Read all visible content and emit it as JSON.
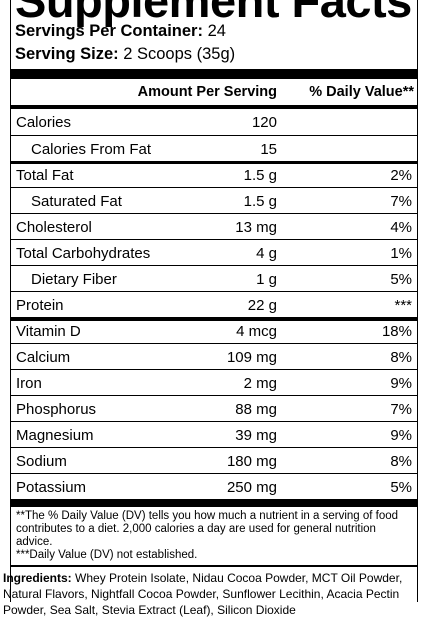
{
  "header": {
    "title": "Supplement Facts",
    "servings_per_container": {
      "label": "Servings Per Container:",
      "value": "24"
    },
    "serving_size": {
      "label": "Serving Size:",
      "value": "2 Scoops (35g)"
    }
  },
  "table": {
    "columns": [
      "Amount Per Serving",
      "% Daily Value**"
    ],
    "rows": [
      {
        "name": "Calories",
        "amount": "120"
      },
      {
        "name": "Calories From Fat",
        "amount": "15"
      },
      {
        "name": "Total Fat",
        "amount": "1.5 g",
        "dv": "2%"
      },
      {
        "name": "Saturated Fat",
        "amount": "1.5 g",
        "dv": "7%"
      },
      {
        "name": "Cholesterol",
        "amount": "13 mg",
        "dv": "4%"
      },
      {
        "name": "Total Carbohydrates",
        "amount": "4 g",
        "dv": "1%"
      },
      {
        "name": "Dietary Fiber",
        "amount": "1 g",
        "dv": "5%"
      },
      {
        "name": "Protein",
        "amount": "22 g",
        "dv": "***"
      },
      {
        "name": "Vitamin D",
        "amount": "4 mcg",
        "dv": "18%"
      },
      {
        "name": "Calcium",
        "amount": "109 mg",
        "dv": "8%"
      },
      {
        "name": "Iron",
        "amount": "2 mg",
        "dv": "9%"
      },
      {
        "name": "Phosphorus",
        "amount": "88 mg",
        "dv": "7%"
      },
      {
        "name": "Magnesium",
        "amount": "39 mg",
        "dv": "9%"
      },
      {
        "name": "Sodium",
        "amount": "180 mg",
        "dv": "8%"
      },
      {
        "name": "Potassium",
        "amount": "250 mg",
        "dv": "5%"
      }
    ]
  },
  "footnotes": [
    "**The % Daily Value (DV) tells you how much a nutrient in a serving of food contributes to a diet. 2,000 calories a day are used for general nutrition advice.",
    "***Daily Value (DV) not established."
  ],
  "ingredients": {
    "label": "Ingredients:",
    "text": "Whey Protein Isolate, Nidau Cocoa Powder, MCT Oil Powder, Natural Flavors, Nightfall Cocoa Powder, Sunflower Lecithin, Acacia Pectin Powder, Sea Salt, Stevia Extract (Leaf), Silicon Dioxide"
  }
}
